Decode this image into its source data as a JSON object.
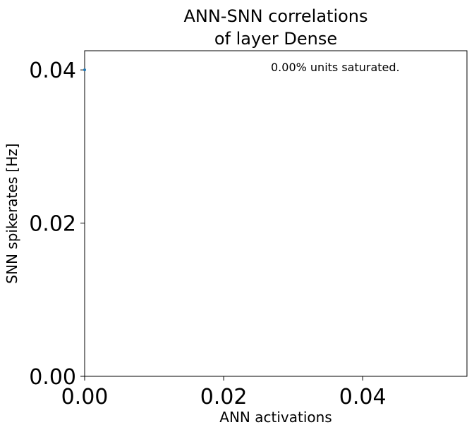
{
  "chart_data": {
    "type": "scatter",
    "title_lines": [
      "ANN-SNN correlations",
      "of layer Dense"
    ],
    "xlabel": "ANN activations",
    "ylabel": "SNN spikerates [Hz]",
    "xlim": [
      0.0,
      0.055
    ],
    "ylim": [
      0.0,
      0.0425
    ],
    "xticks": [
      0.0,
      0.02,
      0.04
    ],
    "xtick_labels": [
      "0.00",
      "0.02",
      "0.04"
    ],
    "yticks": [
      0.0,
      0.02,
      0.04
    ],
    "ytick_labels": [
      "0.00",
      "0.02",
      "0.04"
    ],
    "annotation": "0.00% units saturated.",
    "grid": false,
    "points": [
      {
        "x": 0.0,
        "y": 0.04
      }
    ],
    "point_color": "#1f77b4"
  }
}
